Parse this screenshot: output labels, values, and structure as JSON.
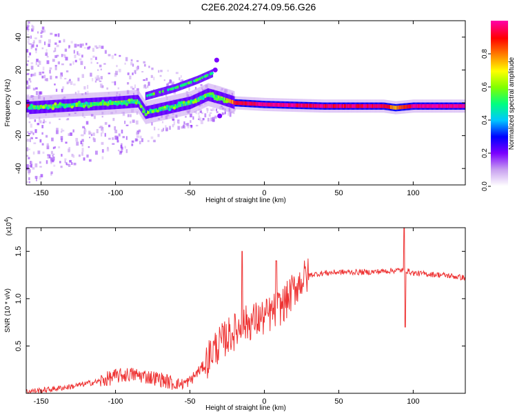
{
  "page": {
    "title": "C2E6.2024.274.09.56.G26"
  },
  "chart_data": [
    {
      "type": "heatmap",
      "title": "C2E6.2024.274.09.56.G26",
      "xlabel": "Height of straight line (km)",
      "ylabel": "Frequency (Hz)",
      "xlim": [
        -160,
        135
      ],
      "ylim": [
        -50,
        50
      ],
      "xticks": [
        -150,
        -100,
        -50,
        0,
        50,
        100
      ],
      "yticks": [
        -40,
        -20,
        0,
        20,
        40
      ],
      "colorbar": {
        "label": "Normalized spectral amplitude",
        "range": [
          0.0,
          1.0
        ],
        "ticks": [
          "0.0",
          "0.2",
          "0.4",
          "0.6",
          "0.8"
        ],
        "colors": [
          "#ffffff",
          "#c8a0f0",
          "#7b00ff",
          "#0000ff",
          "#00c8ff",
          "#00ff80",
          "#80ff00",
          "#ffff00",
          "#ff8000",
          "#ff0000",
          "#ff00a0"
        ]
      },
      "ridge": [
        {
          "x": -158,
          "f": -3,
          "amp": 0.45
        },
        {
          "x": -140,
          "f": -2,
          "amp": 0.45
        },
        {
          "x": -120,
          "f": -1,
          "amp": 0.45
        },
        {
          "x": -100,
          "f": 0,
          "amp": 0.5
        },
        {
          "x": -85,
          "f": 1,
          "amp": 0.45
        },
        {
          "x": -80,
          "f": -6,
          "amp": 0.35
        },
        {
          "x": -65,
          "f": -3,
          "amp": 0.45
        },
        {
          "x": -50,
          "f": 0,
          "amp": 0.45
        },
        {
          "x": -38,
          "f": 5,
          "amp": 0.5
        },
        {
          "x": -30,
          "f": 3,
          "amp": 0.5
        },
        {
          "x": -20,
          "f": 0,
          "amp": 0.85
        },
        {
          "x": 0,
          "f": -1,
          "amp": 0.95
        },
        {
          "x": 40,
          "f": -2,
          "amp": 0.9
        },
        {
          "x": 80,
          "f": -2,
          "amp": 0.9
        },
        {
          "x": 88,
          "f": -3,
          "amp": 0.7
        },
        {
          "x": 100,
          "f": -2,
          "amp": 0.95
        },
        {
          "x": 135,
          "f": -2,
          "amp": 0.95
        }
      ],
      "upper_branch": [
        {
          "x": -80,
          "f": 4
        },
        {
          "x": -60,
          "f": 9
        },
        {
          "x": -45,
          "f": 14
        },
        {
          "x": -35,
          "f": 18
        }
      ],
      "outliers": [
        {
          "x": -32,
          "f": 26
        },
        {
          "x": -30,
          "f": -8
        },
        {
          "x": -33,
          "f": 20
        }
      ]
    },
    {
      "type": "line",
      "xlabel": "Height of straight line (km)",
      "ylabel": "SNR (10 * v/v)",
      "y_multiplier": "(x10",
      "y_multiplier_exp": "4",
      "xlim": [
        -160,
        135
      ],
      "ylim": [
        0,
        1.75
      ],
      "xticks": [
        -150,
        -100,
        -50,
        0,
        50,
        100
      ],
      "yticks": [
        "0.5",
        "1.0",
        "1.5"
      ],
      "series": [
        {
          "color": "#ee3333",
          "x": [
            -160,
            -150,
            -140,
            -130,
            -120,
            -110,
            -100,
            -90,
            -80,
            -70,
            -60,
            -55,
            -50,
            -45,
            -40,
            -35,
            -30,
            -25,
            -20,
            -15,
            -10,
            -5,
            0,
            5,
            10,
            15,
            20,
            25,
            30,
            40,
            50,
            60,
            70,
            80,
            90,
            95,
            100,
            110,
            120,
            135
          ],
          "y": [
            0.02,
            0.03,
            0.05,
            0.07,
            0.1,
            0.13,
            0.18,
            0.2,
            0.18,
            0.15,
            0.1,
            0.1,
            0.13,
            0.22,
            0.3,
            0.45,
            0.52,
            0.6,
            0.65,
            0.72,
            0.75,
            0.78,
            0.8,
            0.85,
            0.9,
            0.98,
            1.1,
            1.2,
            1.25,
            1.27,
            1.28,
            1.28,
            1.28,
            1.29,
            1.3,
            1.3,
            1.27,
            1.26,
            1.25,
            1.22
          ]
        }
      ],
      "spikes": [
        {
          "x": -15,
          "y": 1.5
        },
        {
          "x": 8,
          "y": 1.4
        },
        {
          "x": 94,
          "y": 1.75
        },
        {
          "x": 94.5,
          "y": 0.7
        }
      ]
    }
  ]
}
